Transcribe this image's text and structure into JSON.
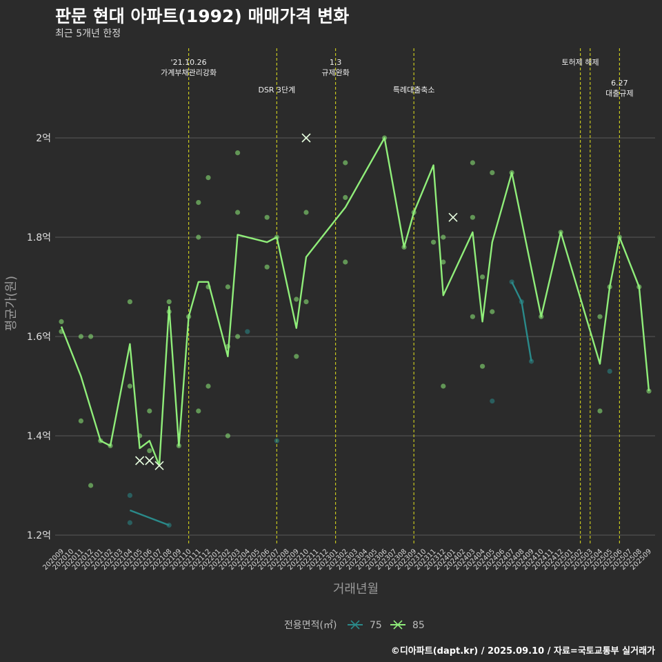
{
  "header": {
    "title": "판문 현대 아파트(1992) 매매가격 변화",
    "subtitle": "최근 5개년 한정"
  },
  "footer": {
    "credit": "©디아파트(dapt.kr) / 2025.09.10 / 자료=국토교통부 실거래가"
  },
  "colors": {
    "background": "#2b2b2b",
    "grid": "#5a5a5a",
    "event_line": "#c8c81e",
    "series_75": "#2a8a8a",
    "series_85": "#90ee7a"
  },
  "chart_data": {
    "type": "line",
    "title": "판문 현대 아파트(1992) 매매가격 변화",
    "subtitle": "최근 5개년 한정",
    "xlabel": "거래년월",
    "ylabel": "평균가(원)",
    "y_unit": "억",
    "ylim": [
      1.18,
      2.2
    ],
    "y_ticks": [
      {
        "value": 1.2,
        "label": "1.2억"
      },
      {
        "value": 1.4,
        "label": "1.4억"
      },
      {
        "value": 1.6,
        "label": "1.6억"
      },
      {
        "value": 1.8,
        "label": "1.8억"
      },
      {
        "value": 2.0,
        "label": "2억"
      }
    ],
    "categories": [
      "202009",
      "202010",
      "202011",
      "202012",
      "202101",
      "202102",
      "202103",
      "202104",
      "202105",
      "202106",
      "202107",
      "202108",
      "202109",
      "202110",
      "202111",
      "202112",
      "202201",
      "202202",
      "202203",
      "202204",
      "202205",
      "202206",
      "202207",
      "202208",
      "202209",
      "202210",
      "202211",
      "202212",
      "202301",
      "202302",
      "202303",
      "202304",
      "202305",
      "202306",
      "202307",
      "202308",
      "202309",
      "202310",
      "202311",
      "202312",
      "202401",
      "202402",
      "202403",
      "202404",
      "202405",
      "202406",
      "202407",
      "202408",
      "202409",
      "202410",
      "202411",
      "202412",
      "202501",
      "202502",
      "202503",
      "202504",
      "202505",
      "202506",
      "202507",
      "202508",
      "202509"
    ],
    "grid": true,
    "legend": {
      "title": "전용면적(㎡)",
      "position": "bottom",
      "items": [
        "75",
        "85"
      ]
    },
    "events": [
      {
        "month": "202110",
        "label_lines": [
          "'21.10.26",
          "가계부채관리강화"
        ],
        "row": 1
      },
      {
        "month": "202207",
        "label_lines": [
          "DSR 3단계"
        ],
        "row": 2
      },
      {
        "month": "202301",
        "label_lines": [
          "1.3",
          "규제완화"
        ],
        "row": 1
      },
      {
        "month": "202309",
        "label_lines": [
          "특례대출축소"
        ],
        "row": 2
      },
      {
        "month": "202502",
        "label_lines": [
          "토허제 해제"
        ],
        "row": 1
      },
      {
        "month": "202503",
        "label_lines": [],
        "row": 1
      },
      {
        "month": "202506",
        "label_lines": [
          "6.27",
          "대출규제"
        ],
        "row": 3
      }
    ],
    "series": [
      {
        "name": "85",
        "color": "#90ee7a",
        "line": [
          {
            "x": "202009",
            "y": 1.62
          },
          {
            "x": "202011",
            "y": 1.52
          },
          {
            "x": "202101",
            "y": 1.39
          },
          {
            "x": "202102",
            "y": 1.38
          },
          {
            "x": "202104",
            "y": 1.585
          },
          {
            "x": "202105",
            "y": 1.375
          },
          {
            "x": "202106",
            "y": 1.39
          },
          {
            "x": "202107",
            "y": 1.34
          },
          {
            "x": "202108",
            "y": 1.66
          },
          {
            "x": "202109",
            "y": 1.38
          },
          {
            "x": "202110",
            "y": 1.64
          },
          {
            "x": "202111",
            "y": 1.71
          },
          {
            "x": "202112",
            "y": 1.71
          },
          {
            "x": "202202",
            "y": 1.56
          },
          {
            "x": "202203",
            "y": 1.805
          },
          {
            "x": "202206",
            "y": 1.79
          },
          {
            "x": "202207",
            "y": 1.8
          },
          {
            "x": "202209",
            "y": 1.617
          },
          {
            "x": "202210",
            "y": 1.76
          },
          {
            "x": "202302",
            "y": 1.86
          },
          {
            "x": "202306",
            "y": 2.0
          },
          {
            "x": "202308",
            "y": 1.78
          },
          {
            "x": "202309",
            "y": 1.85
          },
          {
            "x": "202311",
            "y": 1.945
          },
          {
            "x": "202312",
            "y": 1.683
          },
          {
            "x": "202403",
            "y": 1.81
          },
          {
            "x": "202404",
            "y": 1.63
          },
          {
            "x": "202405",
            "y": 1.79
          },
          {
            "x": "202407",
            "y": 1.93
          },
          {
            "x": "202410",
            "y": 1.64
          },
          {
            "x": "202412",
            "y": 1.81
          },
          {
            "x": "202504",
            "y": 1.545
          },
          {
            "x": "202505",
            "y": 1.7
          },
          {
            "x": "202506",
            "y": 1.8
          },
          {
            "x": "202508",
            "y": 1.7
          },
          {
            "x": "202509",
            "y": 1.49
          }
        ],
        "points": [
          {
            "x": "202009",
            "y": 1.63
          },
          {
            "x": "202009",
            "y": 1.61
          },
          {
            "x": "202011",
            "y": 1.6
          },
          {
            "x": "202011",
            "y": 1.43
          },
          {
            "x": "202012",
            "y": 1.6
          },
          {
            "x": "202012",
            "y": 1.3
          },
          {
            "x": "202101",
            "y": 1.39
          },
          {
            "x": "202102",
            "y": 1.38
          },
          {
            "x": "202104",
            "y": 1.67
          },
          {
            "x": "202104",
            "y": 1.5
          },
          {
            "x": "202105",
            "y": 1.4
          },
          {
            "x": "202106",
            "y": 1.45
          },
          {
            "x": "202106",
            "y": 1.37
          },
          {
            "x": "202108",
            "y": 1.67
          },
          {
            "x": "202108",
            "y": 1.65
          },
          {
            "x": "202109",
            "y": 1.38
          },
          {
            "x": "202110",
            "y": 1.64
          },
          {
            "x": "202111",
            "y": 1.87
          },
          {
            "x": "202111",
            "y": 1.8
          },
          {
            "x": "202111",
            "y": 1.45
          },
          {
            "x": "202112",
            "y": 1.92
          },
          {
            "x": "202112",
            "y": 1.7
          },
          {
            "x": "202112",
            "y": 1.5
          },
          {
            "x": "202202",
            "y": 1.7
          },
          {
            "x": "202202",
            "y": 1.58
          },
          {
            "x": "202202",
            "y": 1.4
          },
          {
            "x": "202203",
            "y": 1.97
          },
          {
            "x": "202203",
            "y": 1.85
          },
          {
            "x": "202203",
            "y": 1.6
          },
          {
            "x": "202206",
            "y": 1.84
          },
          {
            "x": "202206",
            "y": 1.74
          },
          {
            "x": "202207",
            "y": 1.8
          },
          {
            "x": "202209",
            "y": 1.675
          },
          {
            "x": "202209",
            "y": 1.56
          },
          {
            "x": "202210",
            "y": 1.85
          },
          {
            "x": "202210",
            "y": 1.67
          },
          {
            "x": "202302",
            "y": 1.95
          },
          {
            "x": "202302",
            "y": 1.88
          },
          {
            "x": "202302",
            "y": 1.75
          },
          {
            "x": "202306",
            "y": 2.0
          },
          {
            "x": "202308",
            "y": 1.78
          },
          {
            "x": "202309",
            "y": 1.85
          },
          {
            "x": "202311",
            "y": 1.79
          },
          {
            "x": "202312",
            "y": 1.8
          },
          {
            "x": "202312",
            "y": 1.75
          },
          {
            "x": "202312",
            "y": 1.5
          },
          {
            "x": "202403",
            "y": 1.95
          },
          {
            "x": "202403",
            "y": 1.84
          },
          {
            "x": "202403",
            "y": 1.64
          },
          {
            "x": "202404",
            "y": 1.72
          },
          {
            "x": "202404",
            "y": 1.54
          },
          {
            "x": "202405",
            "y": 1.93
          },
          {
            "x": "202405",
            "y": 1.65
          },
          {
            "x": "202407",
            "y": 1.93
          },
          {
            "x": "202410",
            "y": 1.64
          },
          {
            "x": "202412",
            "y": 1.81
          },
          {
            "x": "202504",
            "y": 1.64
          },
          {
            "x": "202504",
            "y": 1.45
          },
          {
            "x": "202505",
            "y": 1.7
          },
          {
            "x": "202506",
            "y": 1.8
          },
          {
            "x": "202508",
            "y": 1.7
          },
          {
            "x": "202509",
            "y": 1.49
          }
        ],
        "cancelled": [
          {
            "x": "202105",
            "y": 1.35
          },
          {
            "x": "202106",
            "y": 1.35
          },
          {
            "x": "202107",
            "y": 1.34
          },
          {
            "x": "202210",
            "y": 2.0
          },
          {
            "x": "202401",
            "y": 1.84
          }
        ]
      },
      {
        "name": "75",
        "color": "#2a8a8a",
        "line_segments": [
          [
            {
              "x": "202104",
              "y": 1.25
            },
            {
              "x": "202108",
              "y": 1.22
            }
          ],
          [
            {
              "x": "202407",
              "y": 1.71
            },
            {
              "x": "202408",
              "y": 1.67
            },
            {
              "x": "202409",
              "y": 1.55
            }
          ]
        ],
        "points": [
          {
            "x": "202104",
            "y": 1.28
          },
          {
            "x": "202104",
            "y": 1.225
          },
          {
            "x": "202108",
            "y": 1.22
          },
          {
            "x": "202204",
            "y": 1.61
          },
          {
            "x": "202207",
            "y": 1.39
          },
          {
            "x": "202405",
            "y": 1.47
          },
          {
            "x": "202407",
            "y": 1.71
          },
          {
            "x": "202408",
            "y": 1.67
          },
          {
            "x": "202409",
            "y": 1.55
          },
          {
            "x": "202505",
            "y": 1.53
          }
        ]
      }
    ]
  }
}
